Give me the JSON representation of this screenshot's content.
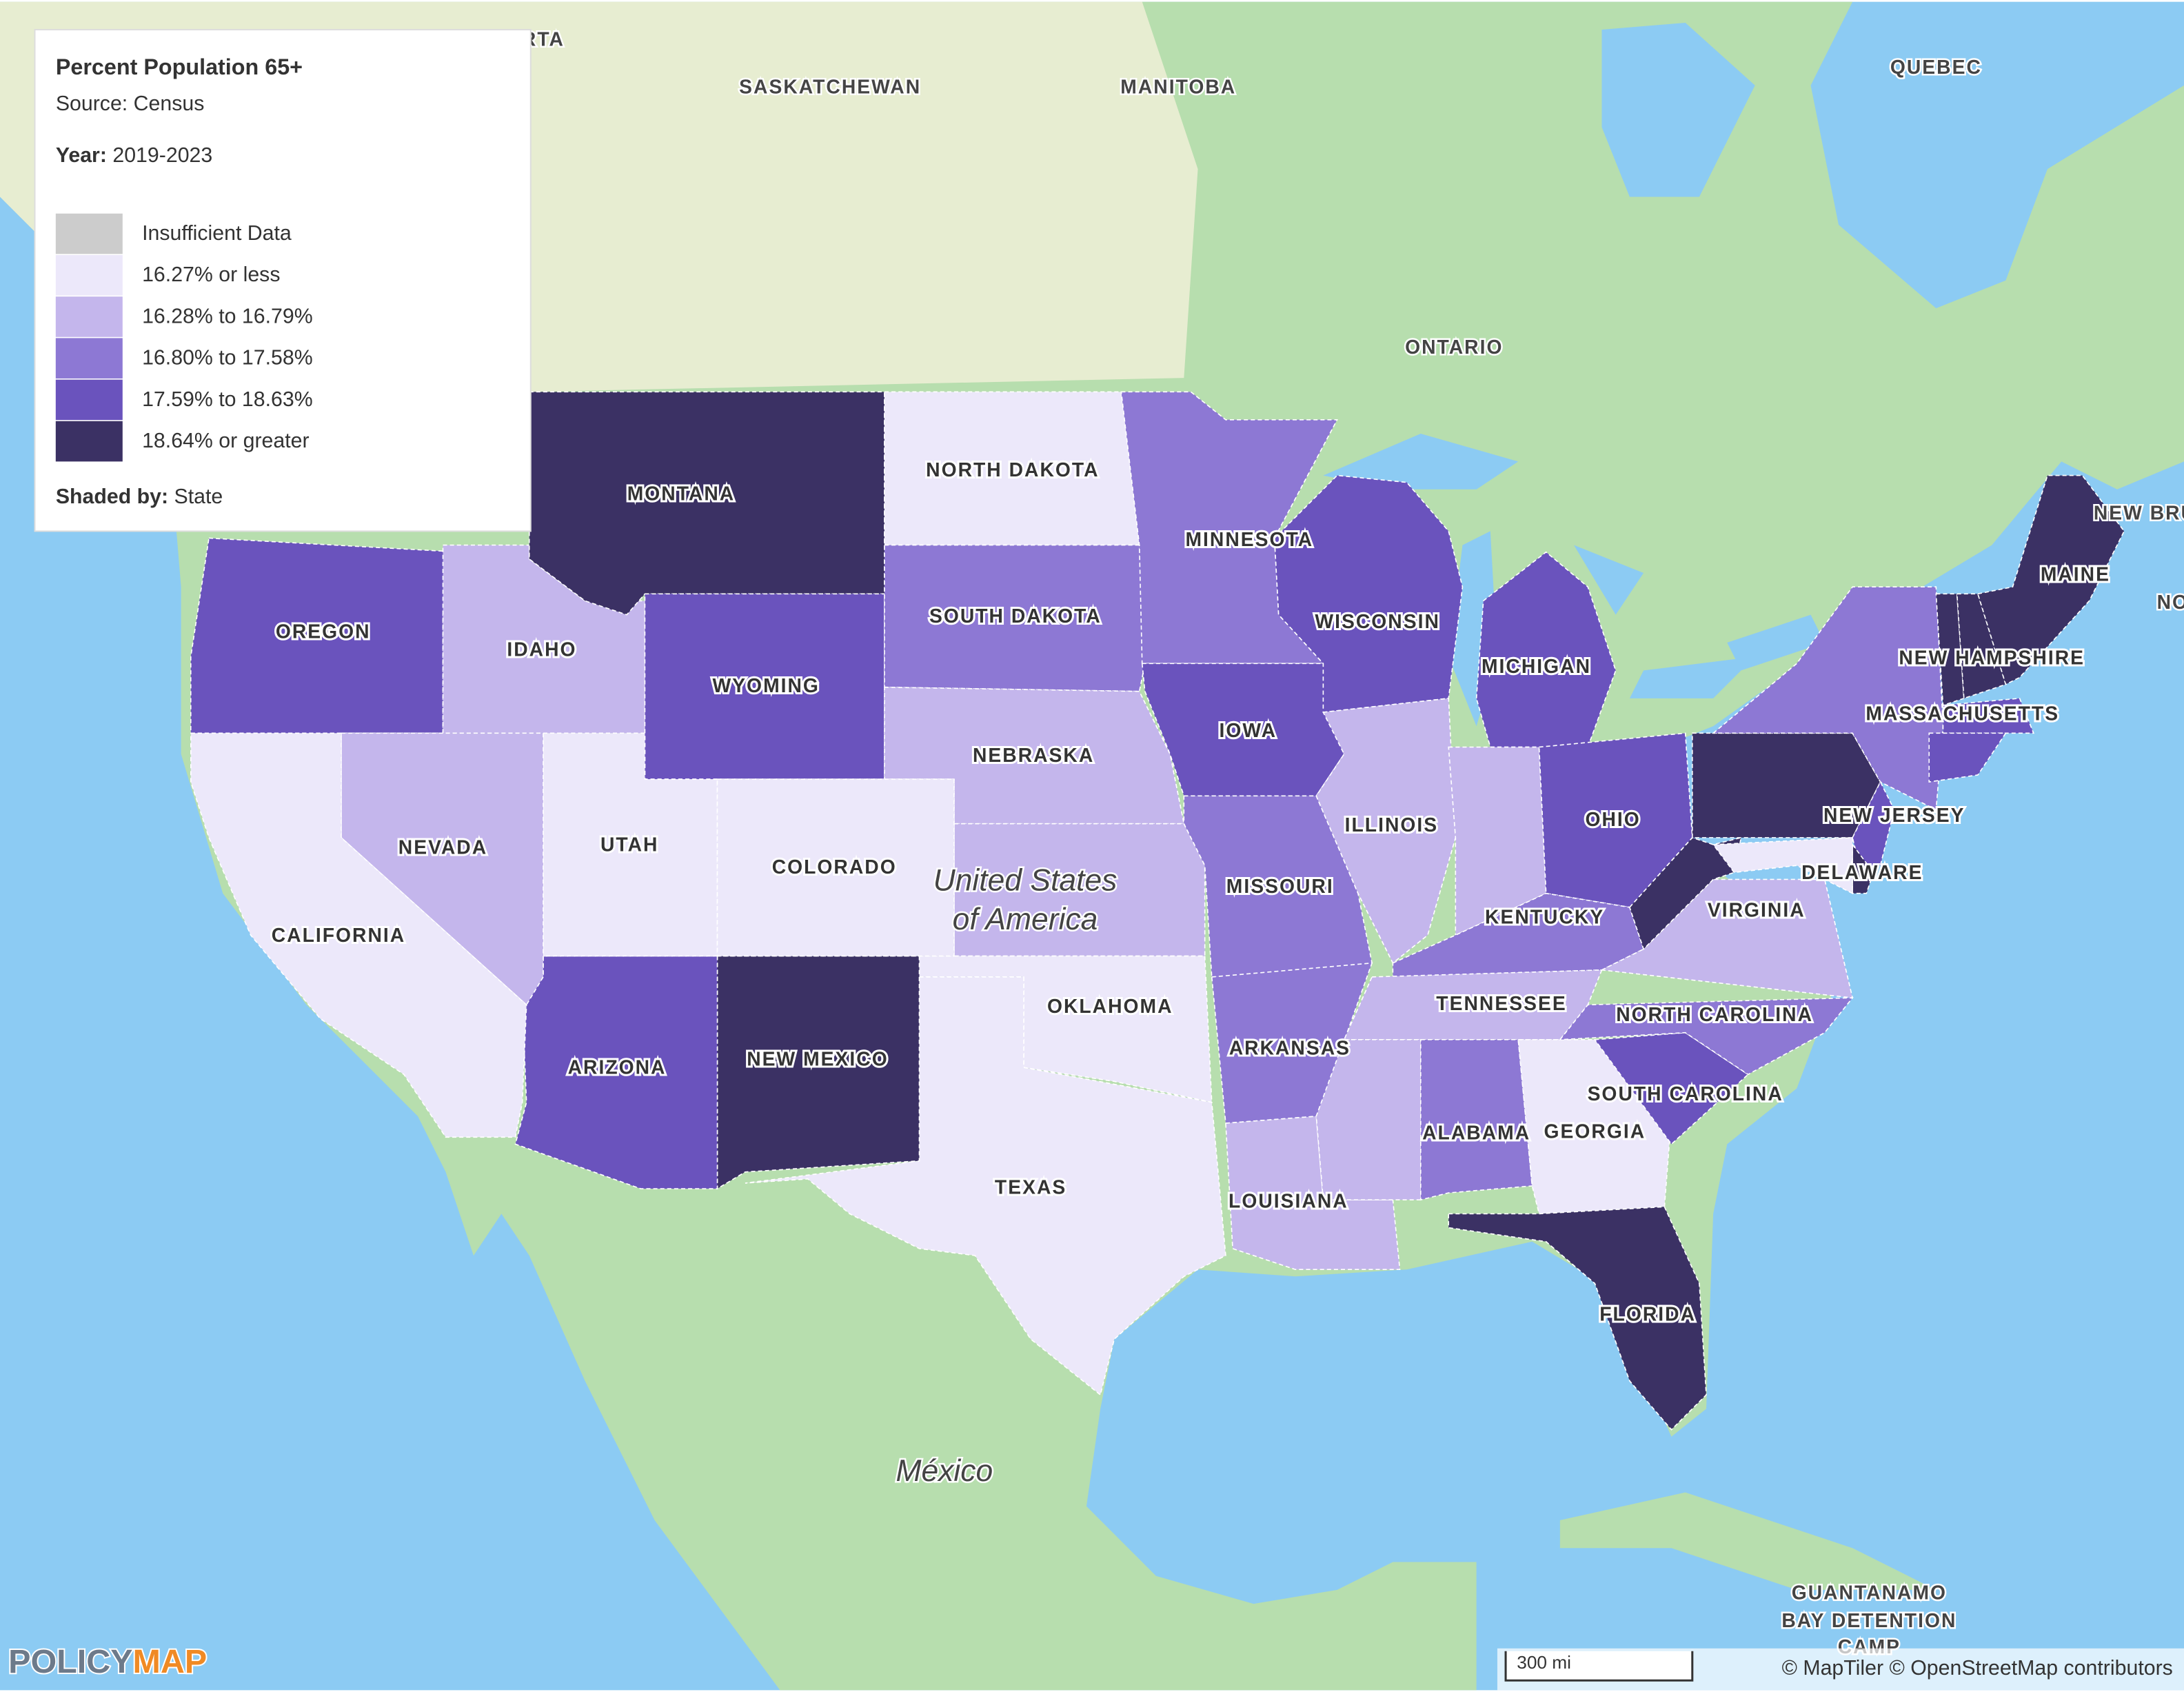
{
  "legend": {
    "title": "Percent Population 65+",
    "source": "Source: Census",
    "year_label": "Year:",
    "year": "2019-2023",
    "items": [
      {
        "label": "Insufficient Data",
        "color": "#cccccc"
      },
      {
        "label": "16.27% or less",
        "color": "#ece8fa"
      },
      {
        "label": "16.28% to 16.79%",
        "color": "#c4b6ec"
      },
      {
        "label": "16.80% to 17.58%",
        "color": "#8d78d4"
      },
      {
        "label": "17.59% to 18.63%",
        "color": "#6a53bd"
      },
      {
        "label": "18.64% or greater",
        "color": "#3b3164"
      }
    ],
    "shaded_label": "Shaded by:",
    "shaded_by": "State"
  },
  "states": [
    {
      "name": "OREGON",
      "class": 4
    },
    {
      "name": "IDAHO",
      "class": 2
    },
    {
      "name": "MONTANA",
      "class": 5
    },
    {
      "name": "WYOMING",
      "class": 4
    },
    {
      "name": "NORTH DAKOTA",
      "class": 1
    },
    {
      "name": "SOUTH DAKOTA",
      "class": 3
    },
    {
      "name": "NEBRASKA",
      "class": 2
    },
    {
      "name": null,
      "class": 2
    },
    {
      "name": "OKLAHOMA",
      "class": 1
    },
    {
      "name": "TEXAS",
      "class": 1
    },
    {
      "name": "NEW MEXICO",
      "class": 5
    },
    {
      "name": "ARIZONA",
      "class": 4
    },
    {
      "name": "UTAH",
      "class": 1
    },
    {
      "name": "COLORADO",
      "class": 1
    },
    {
      "name": "NEVADA",
      "class": 2
    },
    {
      "name": "CALIFORNIA",
      "class": 1
    },
    {
      "name": "MINNESOTA",
      "class": 3
    },
    {
      "name": "IOWA",
      "class": 4
    },
    {
      "name": "MISSOURI",
      "class": 3
    },
    {
      "name": "ARKANSAS",
      "class": 3
    },
    {
      "name": "LOUISIANA",
      "class": 2
    },
    {
      "name": "WISCONSIN",
      "class": 4
    },
    {
      "name": "ILLINOIS",
      "class": 2
    },
    {
      "name": "MICHIGAN",
      "class": 4
    },
    {
      "name": null,
      "class": 2
    },
    {
      "name": "OHIO",
      "class": 4
    },
    {
      "name": "KENTUCKY",
      "class": 3
    },
    {
      "name": "TENNESSEE",
      "class": 2
    },
    {
      "name": null,
      "class": 2
    },
    {
      "name": "ALABAMA",
      "class": 3
    },
    {
      "name": "GEORGIA",
      "class": 1
    },
    {
      "name": "FLORIDA",
      "class": 5
    },
    {
      "name": "SOUTH CAROLINA",
      "class": 4
    },
    {
      "name": "NORTH CAROLINA",
      "class": 3
    },
    {
      "name": "VIRGINIA",
      "class": 2
    },
    {
      "name": null,
      "class": 5
    },
    {
      "name": null,
      "class": 5
    },
    {
      "name": null,
      "class": 3
    },
    {
      "name": "NEW JERSEY",
      "class": 4
    },
    {
      "name": "DELAWARE",
      "class": 5
    },
    {
      "name": null,
      "class": 1
    },
    {
      "name": null,
      "class": 5
    },
    {
      "name": "NEW HAMPSHIRE",
      "class": 5
    },
    {
      "name": "MAINE",
      "class": 5
    },
    {
      "name": "MASSACHUSETTS",
      "class": 4
    },
    {
      "name": null,
      "class": 4
    }
  ],
  "map_labels": {
    "alberta": "RTA",
    "saskatchewan": "SASKATCHEWAN",
    "manitoba": "MANITOBA",
    "ontario": "ONTARIO",
    "quebec": "QUEBEC",
    "new_brunswick": "NEW BRU",
    "nova": "NO",
    "country_us_1": "United States",
    "country_us_2": "of America",
    "mexico": "México",
    "guantanamo_1": "GUANTANAMO",
    "guantanamo_2": "BAY DETENTION",
    "guantanamo_3": "CAMP"
  },
  "footer": {
    "scale": "300 mi",
    "attribution": "© MapTiler © OpenStreetMap contributors",
    "logo_1": "POLICY",
    "logo_2": "MAP"
  }
}
